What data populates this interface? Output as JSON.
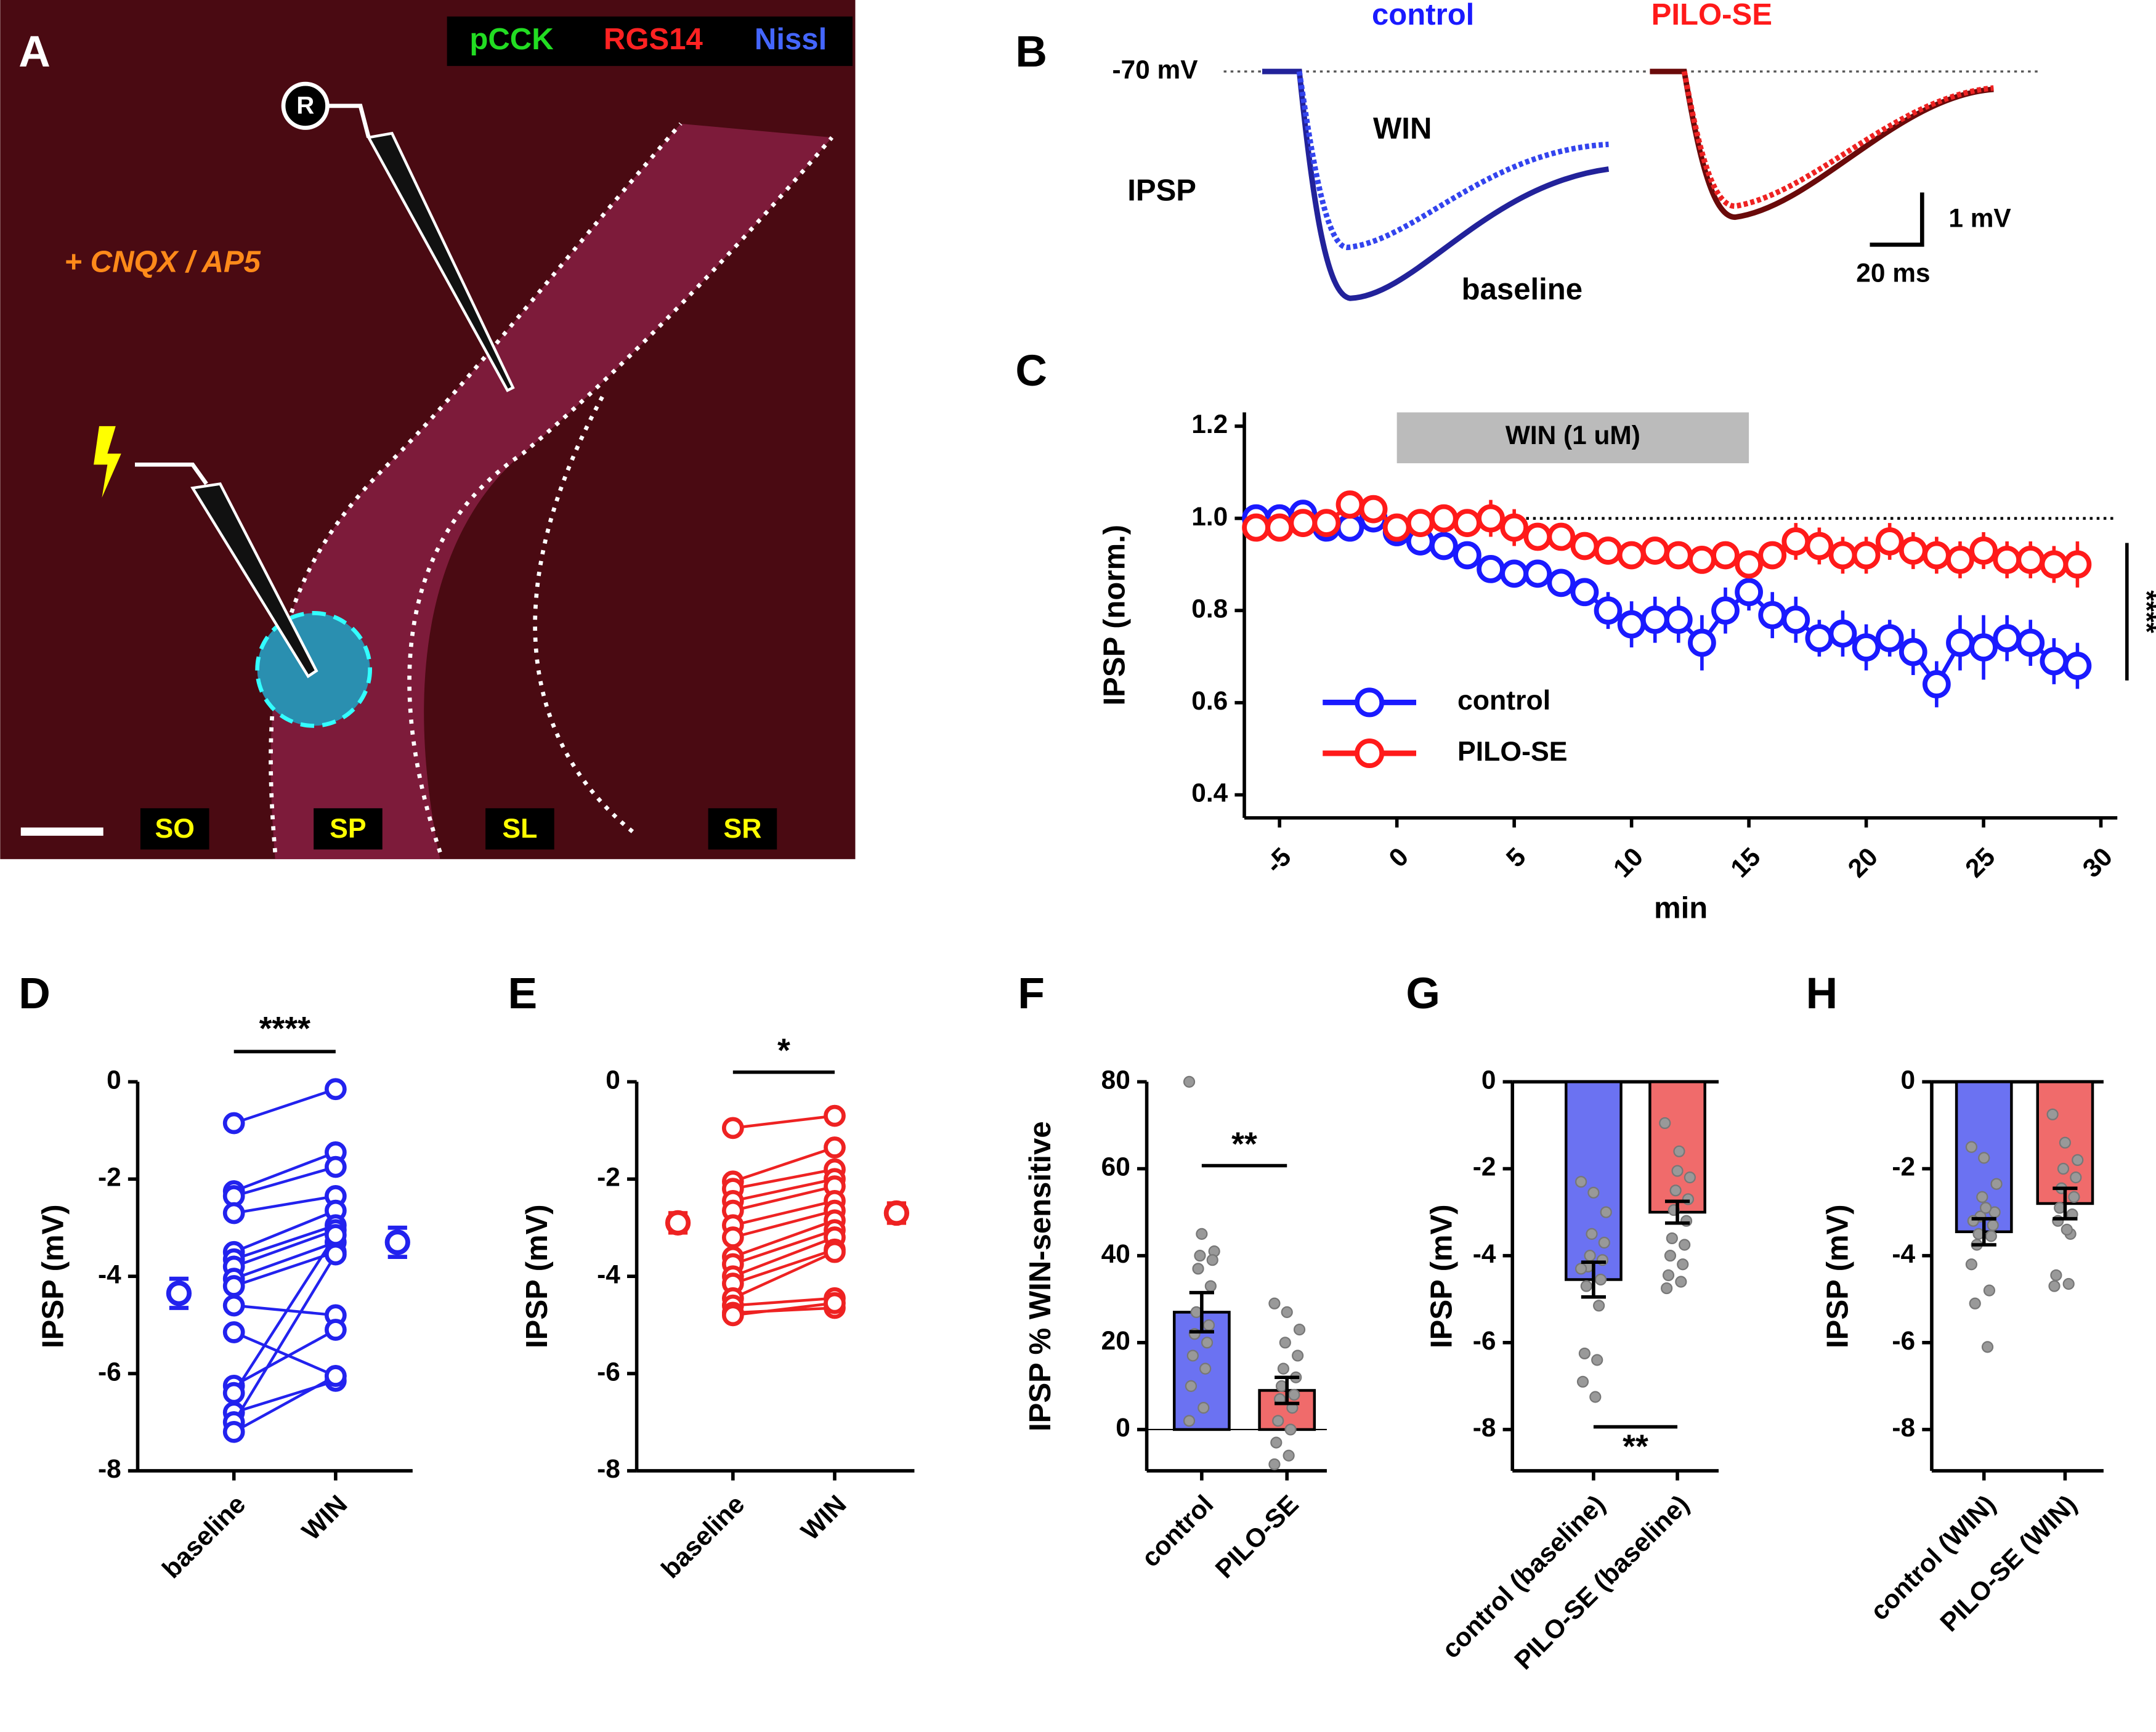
{
  "image_panel": {
    "panel": "A",
    "stains": [
      "pCCK",
      "RGS14",
      "Nissl"
    ],
    "drug": "+ CNQX / AP5",
    "electrode": "R",
    "layers": [
      "SO",
      "SP",
      "SL",
      "SR"
    ]
  },
  "trace_panel": {
    "panel": "B",
    "groups": [
      "control",
      "PILO-SE"
    ],
    "potential": "-70 mV",
    "drug": "WIN",
    "trace_label": "IPSP",
    "baseline": "baseline",
    "scale_v": "1 mV",
    "scale_t": "20 ms"
  },
  "chart_data": [
    {
      "type": "line",
      "panel": "C",
      "xlabel": "min",
      "ylabel": "IPSP (norm.)",
      "x": [
        -6,
        -5,
        -4,
        -3,
        -2,
        -1,
        0,
        1,
        2,
        3,
        4,
        5,
        6,
        7,
        8,
        9,
        10,
        11,
        12,
        13,
        14,
        15,
        16,
        17,
        18,
        19,
        20,
        21,
        22,
        23,
        24,
        25,
        26,
        27,
        28,
        29
      ],
      "series": [
        {
          "name": "control",
          "color": "#1a1aff",
          "values": [
            1.0,
            1.0,
            1.01,
            0.98,
            0.98,
            1.0,
            0.97,
            0.95,
            0.94,
            0.92,
            0.89,
            0.88,
            0.88,
            0.86,
            0.84,
            0.8,
            0.77,
            0.78,
            0.78,
            0.73,
            0.8,
            0.84,
            0.79,
            0.78,
            0.74,
            0.75,
            0.72,
            0.74,
            0.71,
            0.64,
            0.73,
            0.72,
            0.74,
            0.73,
            0.69,
            0.68
          ],
          "errors": [
            0.02,
            0.02,
            0.02,
            0.02,
            0.02,
            0.02,
            0.02,
            0.02,
            0.02,
            0.03,
            0.03,
            0.03,
            0.03,
            0.03,
            0.03,
            0.04,
            0.05,
            0.05,
            0.05,
            0.06,
            0.05,
            0.04,
            0.05,
            0.05,
            0.04,
            0.05,
            0.05,
            0.04,
            0.05,
            0.05,
            0.06,
            0.07,
            0.05,
            0.05,
            0.05,
            0.05
          ]
        },
        {
          "name": "PILO-SE",
          "color": "#ff1a1a",
          "values": [
            0.98,
            0.98,
            0.99,
            0.99,
            1.03,
            1.02,
            0.98,
            0.99,
            1.0,
            0.99,
            1.0,
            0.98,
            0.96,
            0.96,
            0.94,
            0.93,
            0.92,
            0.93,
            0.92,
            0.91,
            0.92,
            0.9,
            0.92,
            0.95,
            0.94,
            0.92,
            0.92,
            0.95,
            0.93,
            0.92,
            0.91,
            0.93,
            0.91,
            0.91,
            0.9,
            0.9
          ],
          "errors": [
            0.03,
            0.03,
            0.03,
            0.03,
            0.03,
            0.03,
            0.03,
            0.03,
            0.03,
            0.03,
            0.04,
            0.04,
            0.03,
            0.03,
            0.03,
            0.03,
            0.03,
            0.03,
            0.03,
            0.03,
            0.03,
            0.03,
            0.03,
            0.04,
            0.04,
            0.04,
            0.04,
            0.04,
            0.04,
            0.04,
            0.04,
            0.04,
            0.04,
            0.04,
            0.04,
            0.05
          ]
        }
      ],
      "xlim": [
        -6.5,
        30.7
      ],
      "xticks": [
        -5,
        0,
        5,
        10,
        15,
        20,
        25,
        30
      ],
      "ylim": [
        0.35,
        1.23
      ],
      "yticks": [
        0.4,
        0.6,
        0.8,
        {
          "value": 1,
          "label": "1.0"
        },
        1.2
      ],
      "reference_line": 1,
      "shaded_label": "WIN (1 uM)",
      "shaded_range": [
        0,
        15
      ],
      "significance": "****",
      "legend": "lower left"
    },
    {
      "type": "paired",
      "panel": "D",
      "ylabel": "IPSP (mV)",
      "categories": [
        "baseline",
        "WIN"
      ],
      "color": "#2222ee",
      "baseline": [
        -0.85,
        -2.25,
        -2.35,
        -2.7,
        -3.5,
        -3.65,
        -3.8,
        -4.05,
        -4.2,
        -4.6,
        -5.15,
        -6.25,
        -6.4,
        -6.8,
        -7.0,
        -7.2
      ],
      "win": [
        -0.15,
        -1.45,
        -1.75,
        -2.35,
        -2.65,
        -2.95,
        -3.05,
        -3.3,
        -3.5,
        -4.8,
        -6.05,
        -5.1,
        -3.15,
        -6.15,
        -3.55,
        -6.05
      ],
      "means": [
        -4.35,
        -3.3
      ],
      "errors": [
        0.3,
        0.3
      ],
      "ylim": [
        -8,
        0
      ],
      "yticks": [
        0,
        -2,
        -4,
        -6,
        -8
      ],
      "significance": "****"
    },
    {
      "type": "paired",
      "panel": "E",
      "ylabel": "IPSP (mV)",
      "categories": [
        "baseline",
        "WIN"
      ],
      "color": "#ee2222",
      "baseline": [
        -0.95,
        -2.05,
        -2.2,
        -2.45,
        -2.65,
        -2.95,
        -3.2,
        -3.6,
        -3.75,
        -4.0,
        -4.15,
        -4.45,
        -4.6,
        -4.75,
        -4.8
      ],
      "win": [
        -0.7,
        -1.35,
        -1.8,
        -2.0,
        -2.15,
        -2.45,
        -2.65,
        -2.85,
        -3.05,
        -3.2,
        -3.45,
        -3.5,
        -4.45,
        -4.65,
        -4.55
      ],
      "means": [
        -2.9,
        -2.7
      ],
      "errors": [
        0.2,
        0.2
      ],
      "ylim": [
        -8,
        0
      ],
      "yticks": [
        0,
        -2,
        -4,
        -6,
        -8
      ],
      "significance": "*"
    },
    {
      "type": "bar",
      "panel": "F",
      "ylabel": "IPSP % WIN-sensitive",
      "categories": [
        "control",
        "PILO-SE"
      ],
      "colors": [
        "#6b72f2",
        "#f06b6b"
      ],
      "values": [
        27,
        9
      ],
      "errors": [
        4.5,
        3
      ],
      "points": [
        [
          80,
          45,
          41,
          40,
          39,
          37,
          33,
          27,
          24,
          22,
          20,
          17,
          14,
          10,
          5,
          2
        ],
        [
          29,
          27,
          23,
          20,
          17,
          14,
          12,
          10,
          8,
          7,
          5,
          2,
          0,
          -3,
          -6,
          -8
        ]
      ],
      "ylim": [
        -9.5,
        80
      ],
      "yticks": [
        0,
        20,
        40,
        60,
        80
      ],
      "significance": "**"
    },
    {
      "type": "bar",
      "panel": "G",
      "ylabel": "IPSP (mV)",
      "categories": [
        "control (baseline)",
        "PILO-SE (baseline)"
      ],
      "colors": [
        "#6b72f2",
        "#f06b6b"
      ],
      "values": [
        -4.55,
        -3.0
      ],
      "errors": [
        0.4,
        0.25
      ],
      "points": [
        [
          -2.3,
          -2.55,
          -3.0,
          -3.5,
          -3.7,
          -4.0,
          -4.1,
          -4.25,
          -4.55,
          -4.7,
          -5.15,
          -6.25,
          -6.4,
          -6.9,
          -7.25,
          -4.3
        ],
        [
          -0.95,
          -2.05,
          -2.2,
          -2.5,
          -2.7,
          -2.95,
          -3.2,
          -3.6,
          -3.75,
          -4.0,
          -4.2,
          -4.45,
          -4.6,
          -4.75,
          -1.6
        ]
      ],
      "ylim": [
        -8.95,
        0
      ],
      "yticks": [
        0,
        -2,
        -4,
        -6,
        -8
      ],
      "significance": "**"
    },
    {
      "type": "bar",
      "panel": "H",
      "ylabel": "IPSP (mV)",
      "categories": [
        "control (WIN)",
        "PILO-SE (WIN)"
      ],
      "colors": [
        "#6b72f2",
        "#f06b6b"
      ],
      "values": [
        -3.45,
        -2.8
      ],
      "errors": [
        0.3,
        0.35
      ],
      "points": [
        [
          -1.5,
          -1.75,
          -2.35,
          -2.65,
          -3.0,
          -3.1,
          -3.3,
          -3.5,
          -3.55,
          -3.75,
          -4.8,
          -5.1,
          -6.1,
          -3.2,
          -2.9,
          -4.2
        ],
        [
          -0.75,
          -1.4,
          -1.8,
          -2.0,
          -2.2,
          -2.45,
          -2.65,
          -2.9,
          -3.05,
          -3.2,
          -3.5,
          -4.45,
          -4.65,
          -4.7,
          -3.4
        ]
      ],
      "ylim": [
        -8.95,
        0
      ],
      "yticks": [
        0,
        -2,
        -4,
        -6,
        -8
      ]
    }
  ]
}
